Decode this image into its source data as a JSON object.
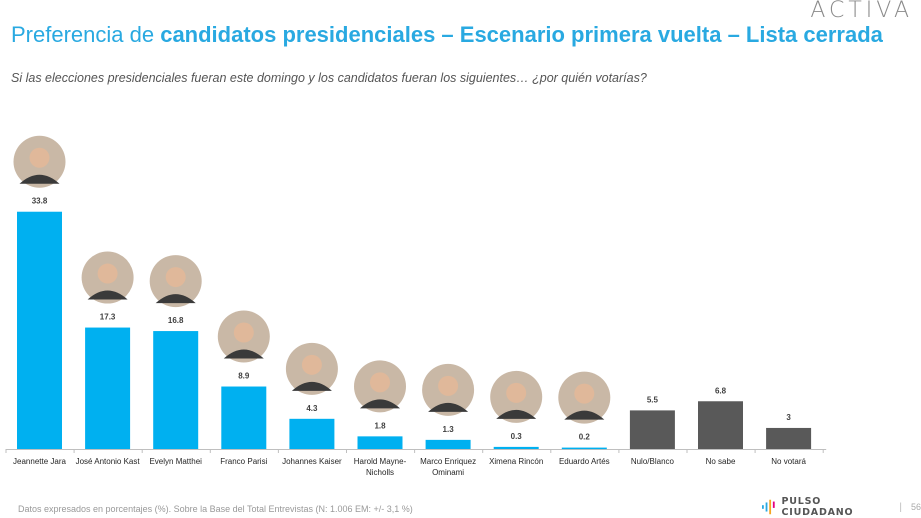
{
  "brand": "ACTIVA",
  "header": {
    "title_prefix": "Preferencia de ",
    "title_bold": "candidatos presidenciales – Escenario primera vuelta – Lista cerrada",
    "subtitle": "Si las elecciones presidenciales fueran este domingo y los candidatos fueran los siguientes… ¿por quién votarías?"
  },
  "footer": {
    "note": "Datos expresados en porcentajes (%). Sobre la Base del Total Entrevistas (N: 1.006  EM: +/- 3,1 %)",
    "logo_text": "PULSO CIUDADANO",
    "separator": "|",
    "page": "56"
  },
  "colors": {
    "title": "#29a9e1",
    "candidate_bar": "#00b0f0",
    "other_bar": "#595959"
  },
  "chart_data": {
    "type": "bar",
    "title": "Preferencia de candidatos presidenciales – Escenario primera vuelta – Lista cerrada",
    "xlabel": "",
    "ylabel": "",
    "unit": "%",
    "ylim": [
      0,
      35
    ],
    "grid": false,
    "legend": "none",
    "categories": [
      [
        "Jeannette Jara"
      ],
      [
        "José Antonio Kast"
      ],
      [
        "Evelyn Matthei"
      ],
      [
        "Franco Parisi"
      ],
      [
        "Johannes Kaiser"
      ],
      [
        "Harold Mayne-",
        "Nicholls"
      ],
      [
        "Marco Enriquez",
        "Ominami"
      ],
      [
        "Ximena Rincón"
      ],
      [
        "Eduardo Artés"
      ],
      [
        "Nulo/Blanco"
      ],
      [
        "No sabe"
      ],
      [
        "No votará"
      ]
    ],
    "values": [
      33.8,
      17.3,
      16.8,
      8.9,
      4.3,
      1.8,
      1.3,
      0.3,
      0.2,
      5.5,
      6.8,
      3
    ],
    "value_labels": [
      "33.8",
      "17.3",
      "16.8",
      "8.9",
      "4.3",
      "1.8",
      "1.3",
      "0.3",
      "0.2",
      "5.5",
      "6.8",
      "3"
    ],
    "bar_kind": [
      "candidate",
      "candidate",
      "candidate",
      "candidate",
      "candidate",
      "candidate",
      "candidate",
      "candidate",
      "candidate",
      "other",
      "other",
      "other"
    ],
    "photos": [
      "candidate-photo",
      "candidate-photo",
      "candidate-photo",
      "candidate-photo",
      "candidate-photo",
      "candidate-photo",
      "candidate-photo",
      "candidate-photo",
      "candidate-photo",
      null,
      null,
      null
    ]
  }
}
